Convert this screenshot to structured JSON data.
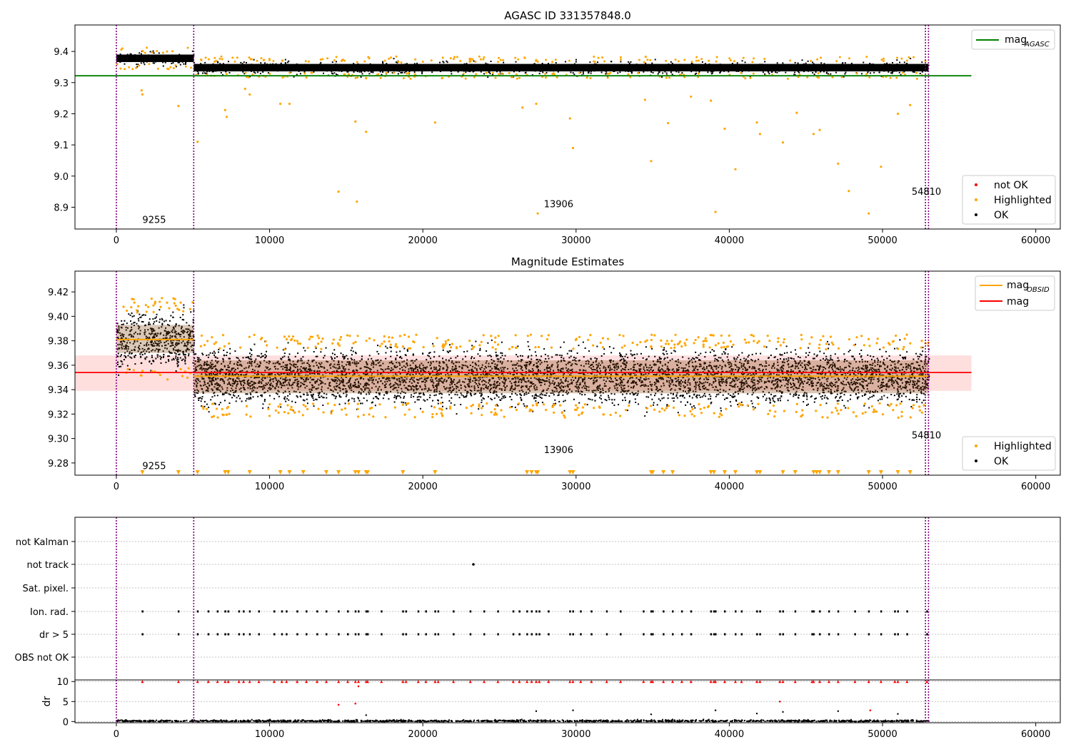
{
  "figure": {
    "title_top": "AGASC ID 331357848.0",
    "title_mid": "Magnitude Estimates"
  },
  "chart_data": [
    {
      "type": "scatter",
      "panel": "agasc",
      "title": "AGASC ID 331357848.0",
      "xlabel": "",
      "ylabel": "",
      "xlim": [
        -2700,
        61600
      ],
      "ylim": [
        8.83,
        9.485
      ],
      "xticks": [
        0,
        10000,
        20000,
        30000,
        40000,
        50000,
        60000
      ],
      "xtick_labels": [
        "0",
        "10000",
        "20000",
        "30000",
        "40000",
        "50000",
        "60000"
      ],
      "yticks": [
        8.9,
        9.0,
        9.1,
        9.2,
        9.3,
        9.4
      ],
      "ytick_labels": [
        "8.9",
        "9.0",
        "9.1",
        "9.2",
        "9.3",
        "9.4"
      ],
      "vlines": [
        0,
        5050,
        52800,
        53000
      ],
      "hline": {
        "label_base": "mag",
        "label_sub": "AGASC",
        "value": 9.322,
        "color": "#008000",
        "x_range": [
          -2700,
          55800
        ]
      },
      "segments": [
        {
          "x_start": 0,
          "x_end": 5050,
          "center": 9.378,
          "spread": 0.012
        },
        {
          "x_start": 5050,
          "x_end": 53000,
          "center": 9.348,
          "spread": 0.012
        }
      ],
      "legend": {
        "position": "lower right",
        "entries": [
          {
            "label": "not OK",
            "color": "#ff0000"
          },
          {
            "label": "Highlighted",
            "color": "#ffa500"
          },
          {
            "label": "OK",
            "color": "#000000"
          }
        ]
      },
      "annotations": [
        {
          "text": "9255",
          "x": 1700,
          "y": 8.85
        },
        {
          "text": "13906",
          "x": 27900,
          "y": 8.9
        },
        {
          "text": "54810",
          "x": 51900,
          "y": 8.94
        }
      ],
      "highlighted_points": [
        {
          "x": 1650,
          "y": 9.275
        },
        {
          "x": 1700,
          "y": 9.262
        },
        {
          "x": 4050,
          "y": 9.225
        },
        {
          "x": 5300,
          "y": 9.11
        },
        {
          "x": 7100,
          "y": 9.212
        },
        {
          "x": 7200,
          "y": 9.19
        },
        {
          "x": 8400,
          "y": 9.28
        },
        {
          "x": 8700,
          "y": 9.262
        },
        {
          "x": 10700,
          "y": 9.232
        },
        {
          "x": 11300,
          "y": 9.232
        },
        {
          "x": 14500,
          "y": 8.95
        },
        {
          "x": 15600,
          "y": 9.175
        },
        {
          "x": 15700,
          "y": 8.918
        },
        {
          "x": 16300,
          "y": 9.142
        },
        {
          "x": 20800,
          "y": 9.172
        },
        {
          "x": 26500,
          "y": 9.22
        },
        {
          "x": 27400,
          "y": 9.232
        },
        {
          "x": 27500,
          "y": 8.88
        },
        {
          "x": 29600,
          "y": 9.185
        },
        {
          "x": 29800,
          "y": 9.09
        },
        {
          "x": 34500,
          "y": 9.245
        },
        {
          "x": 34900,
          "y": 9.048
        },
        {
          "x": 36000,
          "y": 9.17
        },
        {
          "x": 37500,
          "y": 9.255
        },
        {
          "x": 38800,
          "y": 9.242
        },
        {
          "x": 39100,
          "y": 8.885
        },
        {
          "x": 39700,
          "y": 9.152
        },
        {
          "x": 40400,
          "y": 9.022
        },
        {
          "x": 41800,
          "y": 9.172
        },
        {
          "x": 42000,
          "y": 9.135
        },
        {
          "x": 43500,
          "y": 9.108
        },
        {
          "x": 44400,
          "y": 9.203
        },
        {
          "x": 45500,
          "y": 9.135
        },
        {
          "x": 45900,
          "y": 9.148
        },
        {
          "x": 47100,
          "y": 9.04
        },
        {
          "x": 47800,
          "y": 8.952
        },
        {
          "x": 49100,
          "y": 8.88
        },
        {
          "x": 49900,
          "y": 9.03
        },
        {
          "x": 51000,
          "y": 9.2
        },
        {
          "x": 51800,
          "y": 9.228
        }
      ]
    },
    {
      "type": "scatter",
      "panel": "magnitude",
      "title": "Magnitude Estimates",
      "xlabel": "",
      "ylabel": "",
      "xlim": [
        -2700,
        61600
      ],
      "ylim": [
        9.27,
        9.437
      ],
      "xticks": [
        0,
        10000,
        20000,
        30000,
        40000,
        50000,
        60000
      ],
      "xtick_labels": [
        "0",
        "10000",
        "20000",
        "30000",
        "40000",
        "50000",
        "60000"
      ],
      "yticks": [
        9.28,
        9.3,
        9.32,
        9.34,
        9.36,
        9.38,
        9.4,
        9.42
      ],
      "ytick_labels": [
        "9.28",
        "9.30",
        "9.32",
        "9.34",
        "9.36",
        "9.38",
        "9.40",
        "9.42"
      ],
      "vlines": [
        0,
        5050,
        52800,
        53000
      ],
      "mag_line": {
        "label": "mag",
        "value": 9.354,
        "band": [
          9.339,
          9.368
        ],
        "color": "#ff0000",
        "x_range": [
          -2700,
          55800
        ]
      },
      "obsid_segments": [
        {
          "x_start": 0,
          "x_end": 5050,
          "value": 9.381,
          "band": [
            9.37,
            9.393
          ]
        },
        {
          "x_start": 5050,
          "x_end": 53000,
          "value": 9.351,
          "band": [
            9.337,
            9.364
          ]
        }
      ],
      "obsid_label": {
        "base": "mag",
        "sub": "OBSID",
        "color": "#ffa500"
      },
      "legend": {
        "position": "lower right",
        "entries": [
          {
            "label": "Highlighted",
            "color": "#ffa500"
          },
          {
            "label": "OK",
            "color": "#000000"
          }
        ]
      },
      "annotations": [
        {
          "text": "9255",
          "x": 1700,
          "y": 9.275
        },
        {
          "text": "13906",
          "x": 27900,
          "y": 9.288
        },
        {
          "text": "54810",
          "x": 51900,
          "y": 9.3
        }
      ],
      "clipped_low_markers_x": [
        1700,
        4050,
        5300,
        7100,
        7300,
        8700,
        10700,
        11300,
        12200,
        13700,
        14500,
        15600,
        15800,
        16300,
        16400,
        18700,
        20800,
        26800,
        27100,
        27400,
        27500,
        29600,
        29800,
        34900,
        35000,
        35700,
        36300,
        38800,
        39000,
        39700,
        40400,
        41800,
        42000,
        43500,
        44300,
        45500,
        45700,
        45900,
        46500,
        47100,
        49100,
        49900,
        51000,
        51800
      ]
    },
    {
      "type": "scatter",
      "panel": "flags",
      "title": "",
      "xlabel": "",
      "ylabel": "",
      "xlim": [
        -2700,
        61600
      ],
      "categories": [
        "OBS not OK",
        "dr > 5",
        "Ion. rad.",
        "Sat. pixel.",
        "not track",
        "not Kalman"
      ],
      "vlines": [
        0,
        5050,
        52800,
        53000
      ],
      "flag_x_values": [
        1700,
        4050,
        5300,
        6000,
        6600,
        7100,
        7300,
        8000,
        8300,
        8700,
        9300,
        10300,
        10800,
        11100,
        11800,
        12400,
        13100,
        13700,
        14500,
        15100,
        15600,
        15800,
        16300,
        16400,
        17300,
        18700,
        18900,
        19700,
        20200,
        20800,
        21000,
        22000,
        23100,
        24000,
        24900,
        25900,
        26300,
        26800,
        27100,
        27400,
        27600,
        28200,
        29600,
        29800,
        30300,
        31000,
        32000,
        32900,
        34400,
        34900,
        35000,
        35700,
        36300,
        36900,
        37500,
        38800,
        39000,
        39100,
        39700,
        40400,
        40800,
        41800,
        42000,
        43300,
        43500,
        44300,
        45400,
        45500,
        45900,
        46500,
        47100,
        48200,
        49100,
        49900,
        50800,
        51000,
        51600,
        52900
      ],
      "not_track_x": 23300
    },
    {
      "type": "scatter",
      "panel": "dr",
      "title": "",
      "xlabel": "",
      "ylabel": "dr",
      "xlim": [
        -2700,
        61600
      ],
      "ylim": [
        -0.3,
        10.4
      ],
      "xticks": [
        0,
        10000,
        20000,
        30000,
        40000,
        50000,
        60000
      ],
      "xtick_labels": [
        "0",
        "10000",
        "20000",
        "30000",
        "40000",
        "50000",
        "60000"
      ],
      "yticks": [
        0,
        5,
        10
      ],
      "ytick_labels": [
        "0",
        "5",
        "10"
      ],
      "vlines": [
        0,
        5050,
        52800,
        53000
      ],
      "capped_value": 10,
      "outliers": [
        {
          "x": 14500,
          "y": 4.2
        },
        {
          "x": 15600,
          "y": 4.5
        },
        {
          "x": 15800,
          "y": 8.8
        },
        {
          "x": 43300,
          "y": 5.0
        },
        {
          "x": 49200,
          "y": 2.8
        }
      ],
      "scatter_points": [
        {
          "x": 16300,
          "y": 1.6
        },
        {
          "x": 27400,
          "y": 2.6
        },
        {
          "x": 29800,
          "y": 2.8
        },
        {
          "x": 34900,
          "y": 1.8
        },
        {
          "x": 39100,
          "y": 2.8
        },
        {
          "x": 41800,
          "y": 2.0
        },
        {
          "x": 43500,
          "y": 2.4
        },
        {
          "x": 47100,
          "y": 2.6
        },
        {
          "x": 51000,
          "y": 1.9
        }
      ]
    }
  ]
}
